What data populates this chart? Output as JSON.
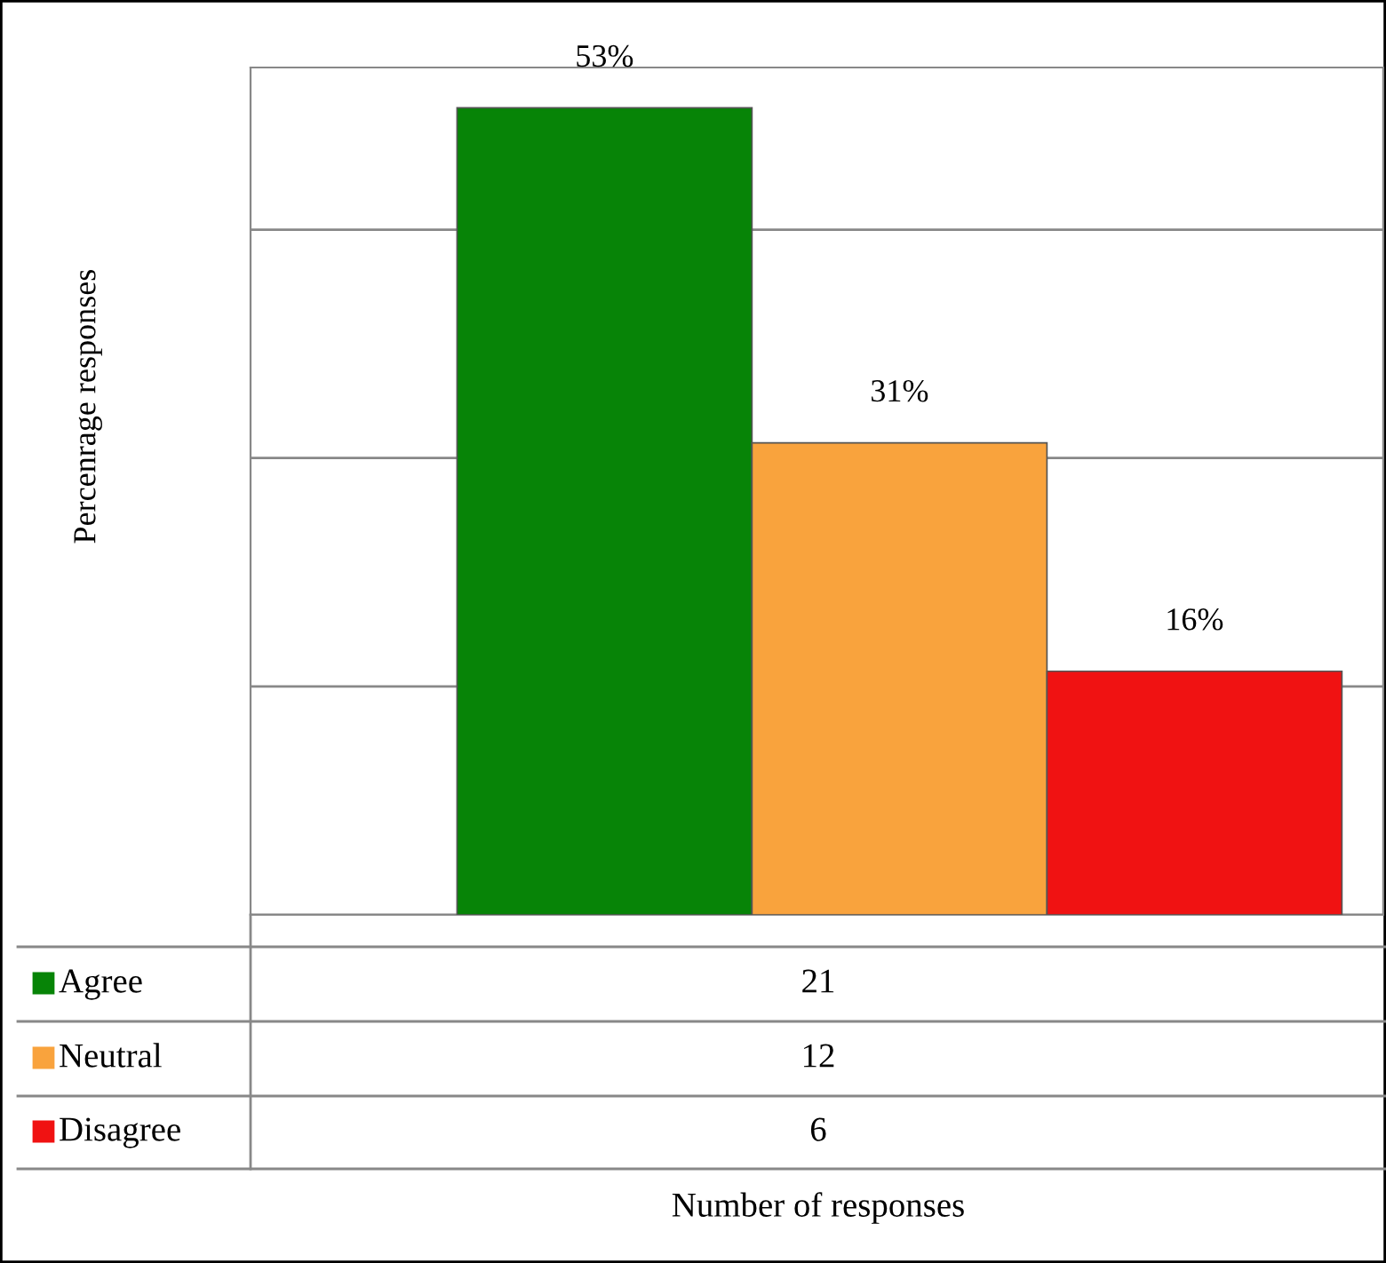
{
  "chart_data": {
    "type": "bar",
    "ylabel": "Percenrage responses",
    "categories": [
      null
    ],
    "series": [
      {
        "name": "Agree",
        "color": "#078407",
        "values": [
          53
        ],
        "value_labels": [
          "53%"
        ]
      },
      {
        "name": "Neutral",
        "color": "#f9a33d",
        "values": [
          31
        ],
        "value_labels": [
          "31%"
        ]
      },
      {
        "name": "Disagree",
        "color": "#f01212",
        "values": [
          16
        ],
        "value_labels": [
          "16%"
        ]
      }
    ],
    "annotations": [
      "21",
      "12",
      "6",
      "Number of responses"
    ],
    "grid": "y",
    "legend": "bottom",
    "tick_labels": false
  }
}
